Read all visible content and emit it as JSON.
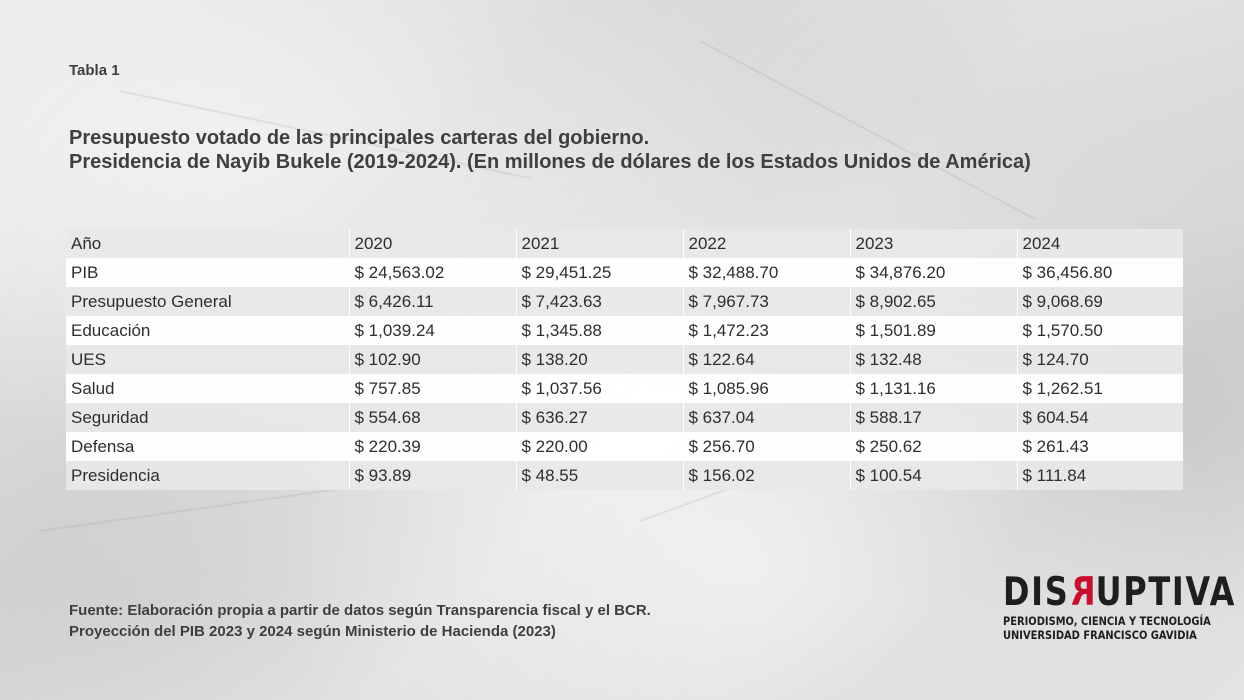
{
  "label": "Tabla 1",
  "title_line1": "Presupuesto votado de las principales carteras del gobierno.",
  "title_line2": "Presidencia de Nayib Bukele (2019-2024). (En millones de dólares de los Estados Unidos de América)",
  "table": {
    "header": [
      "Año",
      "2020",
      "2021",
      "2022",
      "2023",
      "2024"
    ],
    "rows": [
      [
        "PIB",
        "$ 24,563.02",
        "$ 29,451.25",
        "$ 32,488.70",
        "$ 34,876.20",
        "$ 36,456.80"
      ],
      [
        "Presupuesto General",
        "$ 6,426.11",
        "$ 7,423.63",
        "$ 7,967.73",
        "$ 8,902.65",
        "$ 9,068.69"
      ],
      [
        "Educación",
        "$ 1,039.24",
        "$ 1,345.88",
        "$ 1,472.23",
        "$ 1,501.89",
        "$ 1,570.50"
      ],
      [
        "UES",
        "$ 102.90",
        "$ 138.20",
        "$ 122.64",
        "$ 132.48",
        "$ 124.70"
      ],
      [
        "Salud",
        "$ 757.85",
        "$ 1,037.56",
        "$ 1,085.96",
        "$ 1,131.16",
        "$ 1,262.51"
      ],
      [
        "Seguridad",
        "$ 554.68",
        "$ 636.27",
        "$ 637.04",
        "$ 588.17",
        "$ 604.54"
      ],
      [
        "Defensa",
        "$ 220.39",
        "$ 220.00",
        "$ 256.70",
        "$ 250.62",
        "$ 261.43"
      ],
      [
        "Presidencia",
        "$ 93.89",
        "$ 48.55",
        "$ 156.02",
        "$ 100.54",
        "$ 111.84"
      ]
    ]
  },
  "source_line1": "Fuente: Elaboración propia a partir de datos según Transparencia fiscal y el BCR.",
  "source_line2": "Proyección del PIB 2023 y 2024 según Ministerio de Hacienda (2023)",
  "logo": {
    "word_before": "DIS",
    "word_accent": "R",
    "word_after": "UPTIVA",
    "tagline": "PERIODISMO, CIENCIA Y TECNOLOGÍA",
    "university": "UNIVERSIDAD FRANCISCO GAVIDIA",
    "accent_color": "#c8102e"
  }
}
